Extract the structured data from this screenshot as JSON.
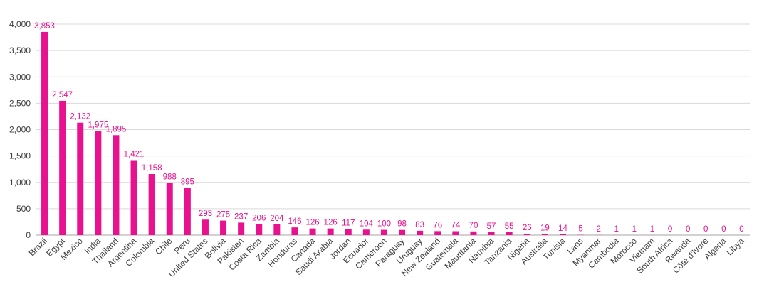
{
  "chart_data": {
    "type": "bar",
    "categories": [
      "Brazil",
      "Egypt",
      "Mexico",
      "India",
      "Thailand",
      "Argentina",
      "Colombia",
      "Chile",
      "Peru",
      "United States",
      "Bolivia",
      "Pakistan",
      "Costa Rica",
      "Zambia",
      "Honduras",
      "Canada",
      "Saudi Arabia",
      "Jordan",
      "Ecuador",
      "Cameroon",
      "Paraguay",
      "Uruguay",
      "New Zealand",
      "Guatemala",
      "Mauritania",
      "Namibia",
      "Tanzania",
      "Nigeria",
      "Australia",
      "Tunisia",
      "Laos",
      "Myanmar",
      "Cambodia",
      "Morocco",
      "Vietnam",
      "South Africa",
      "Rwanda",
      "Côte d'Ivore",
      "Algeria",
      "Libya"
    ],
    "values": [
      3853,
      2547,
      2132,
      1975,
      1895,
      1421,
      1158,
      988,
      895,
      293,
      275,
      237,
      206,
      204,
      146,
      126,
      126,
      117,
      104,
      100,
      98,
      83,
      76,
      74,
      70,
      57,
      55,
      26,
      19,
      14,
      5,
      2,
      1,
      1,
      1,
      0,
      0,
      0,
      0,
      0
    ],
    "value_labels": [
      "3,853",
      "2,547",
      "2,132",
      "1,975",
      "1,895",
      "1,421",
      "1,158",
      "988",
      "895",
      "293",
      "275",
      "237",
      "206",
      "204",
      "146",
      "126",
      "126",
      "117",
      "104",
      "100",
      "98",
      "83",
      "76",
      "74",
      "70",
      "57",
      "55",
      "26",
      "19",
      "14",
      "5",
      "2",
      "1",
      "1",
      "1",
      "0",
      "0",
      "0",
      "0",
      "0"
    ],
    "y_ticks": [
      0,
      500,
      1000,
      1500,
      2000,
      2500,
      3000,
      3500,
      4000
    ],
    "y_tick_labels": [
      "0",
      "500",
      "1,000",
      "1,500",
      "2,000",
      "2,500",
      "3,000",
      "3,500",
      "4,000"
    ],
    "ylim": [
      0,
      4000
    ],
    "grid": true,
    "legend": "none",
    "title": "",
    "xlabel": "",
    "ylabel": "",
    "colors": {
      "bar": "#E8118F",
      "label": "#E8118F",
      "grid": "#D9D9D9",
      "axis": "#A6A6A6"
    }
  }
}
